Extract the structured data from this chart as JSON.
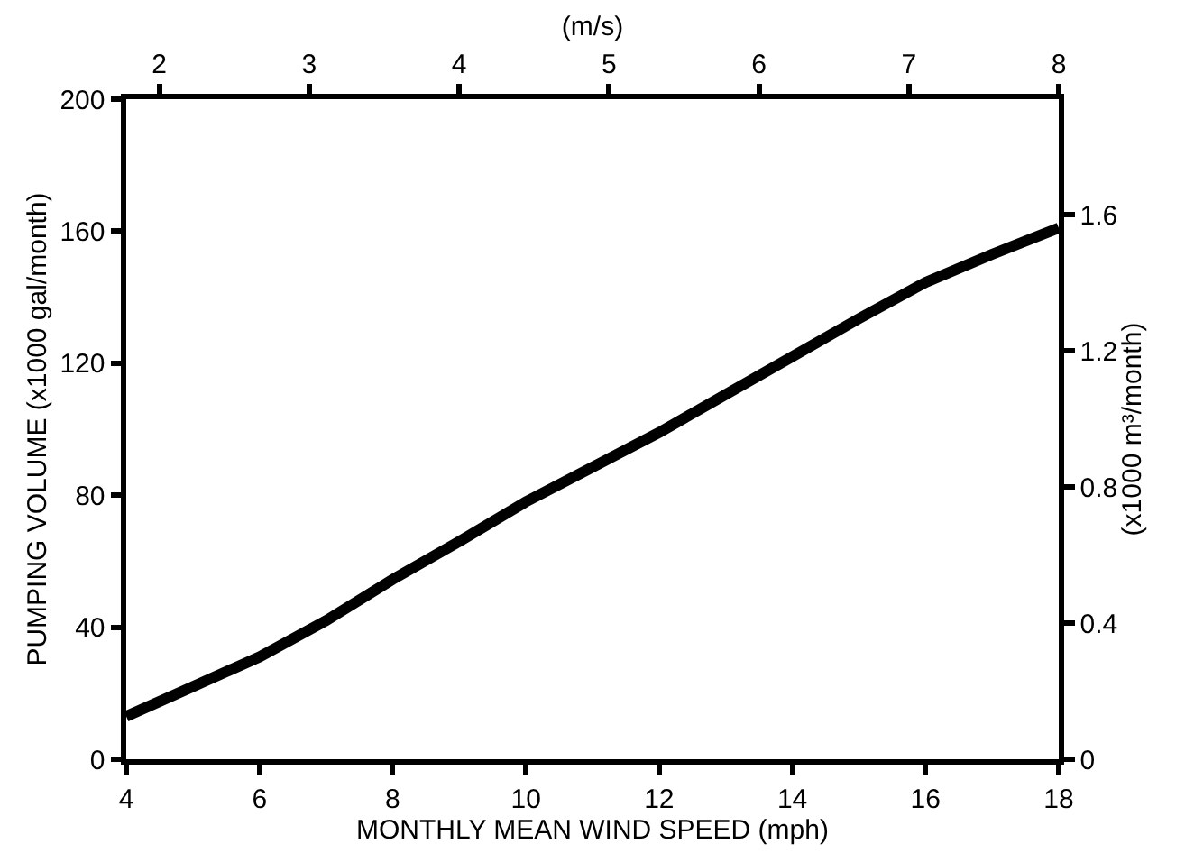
{
  "chart_data": {
    "type": "line",
    "xlabel": "MONTHLY MEAN WIND SPEED (mph)",
    "ylabel": "PUMPING VOLUME (x1000 gal/month)",
    "y2label": "(x1000 m³/month)",
    "x2label": "(m/s)",
    "x": [
      4,
      5,
      6,
      7,
      8,
      9,
      10,
      11,
      12,
      13,
      14,
      15,
      16,
      17,
      18
    ],
    "series": [
      {
        "color": "#000000",
        "values": [
          13,
          22,
          31,
          42,
          54.5,
          66,
          78,
          88.5,
          99,
          110.5,
          122,
          133.5,
          144.5,
          153,
          161
        ]
      }
    ],
    "xlim": [
      4,
      18
    ],
    "xticks": [
      4,
      6,
      8,
      10,
      12,
      14,
      16,
      18
    ],
    "ylim": [
      0,
      200
    ],
    "yticks": [
      0,
      40,
      80,
      120,
      160,
      200
    ],
    "y2lim": [
      0,
      1.94
    ],
    "y2ticks": [
      0,
      0.4,
      0.8,
      1.2,
      1.6
    ],
    "x2lim": [
      1.78,
      8
    ],
    "x2ticks": [
      2,
      3,
      4,
      5,
      6,
      7,
      8
    ],
    "marker": "none",
    "line_style": "solid"
  }
}
